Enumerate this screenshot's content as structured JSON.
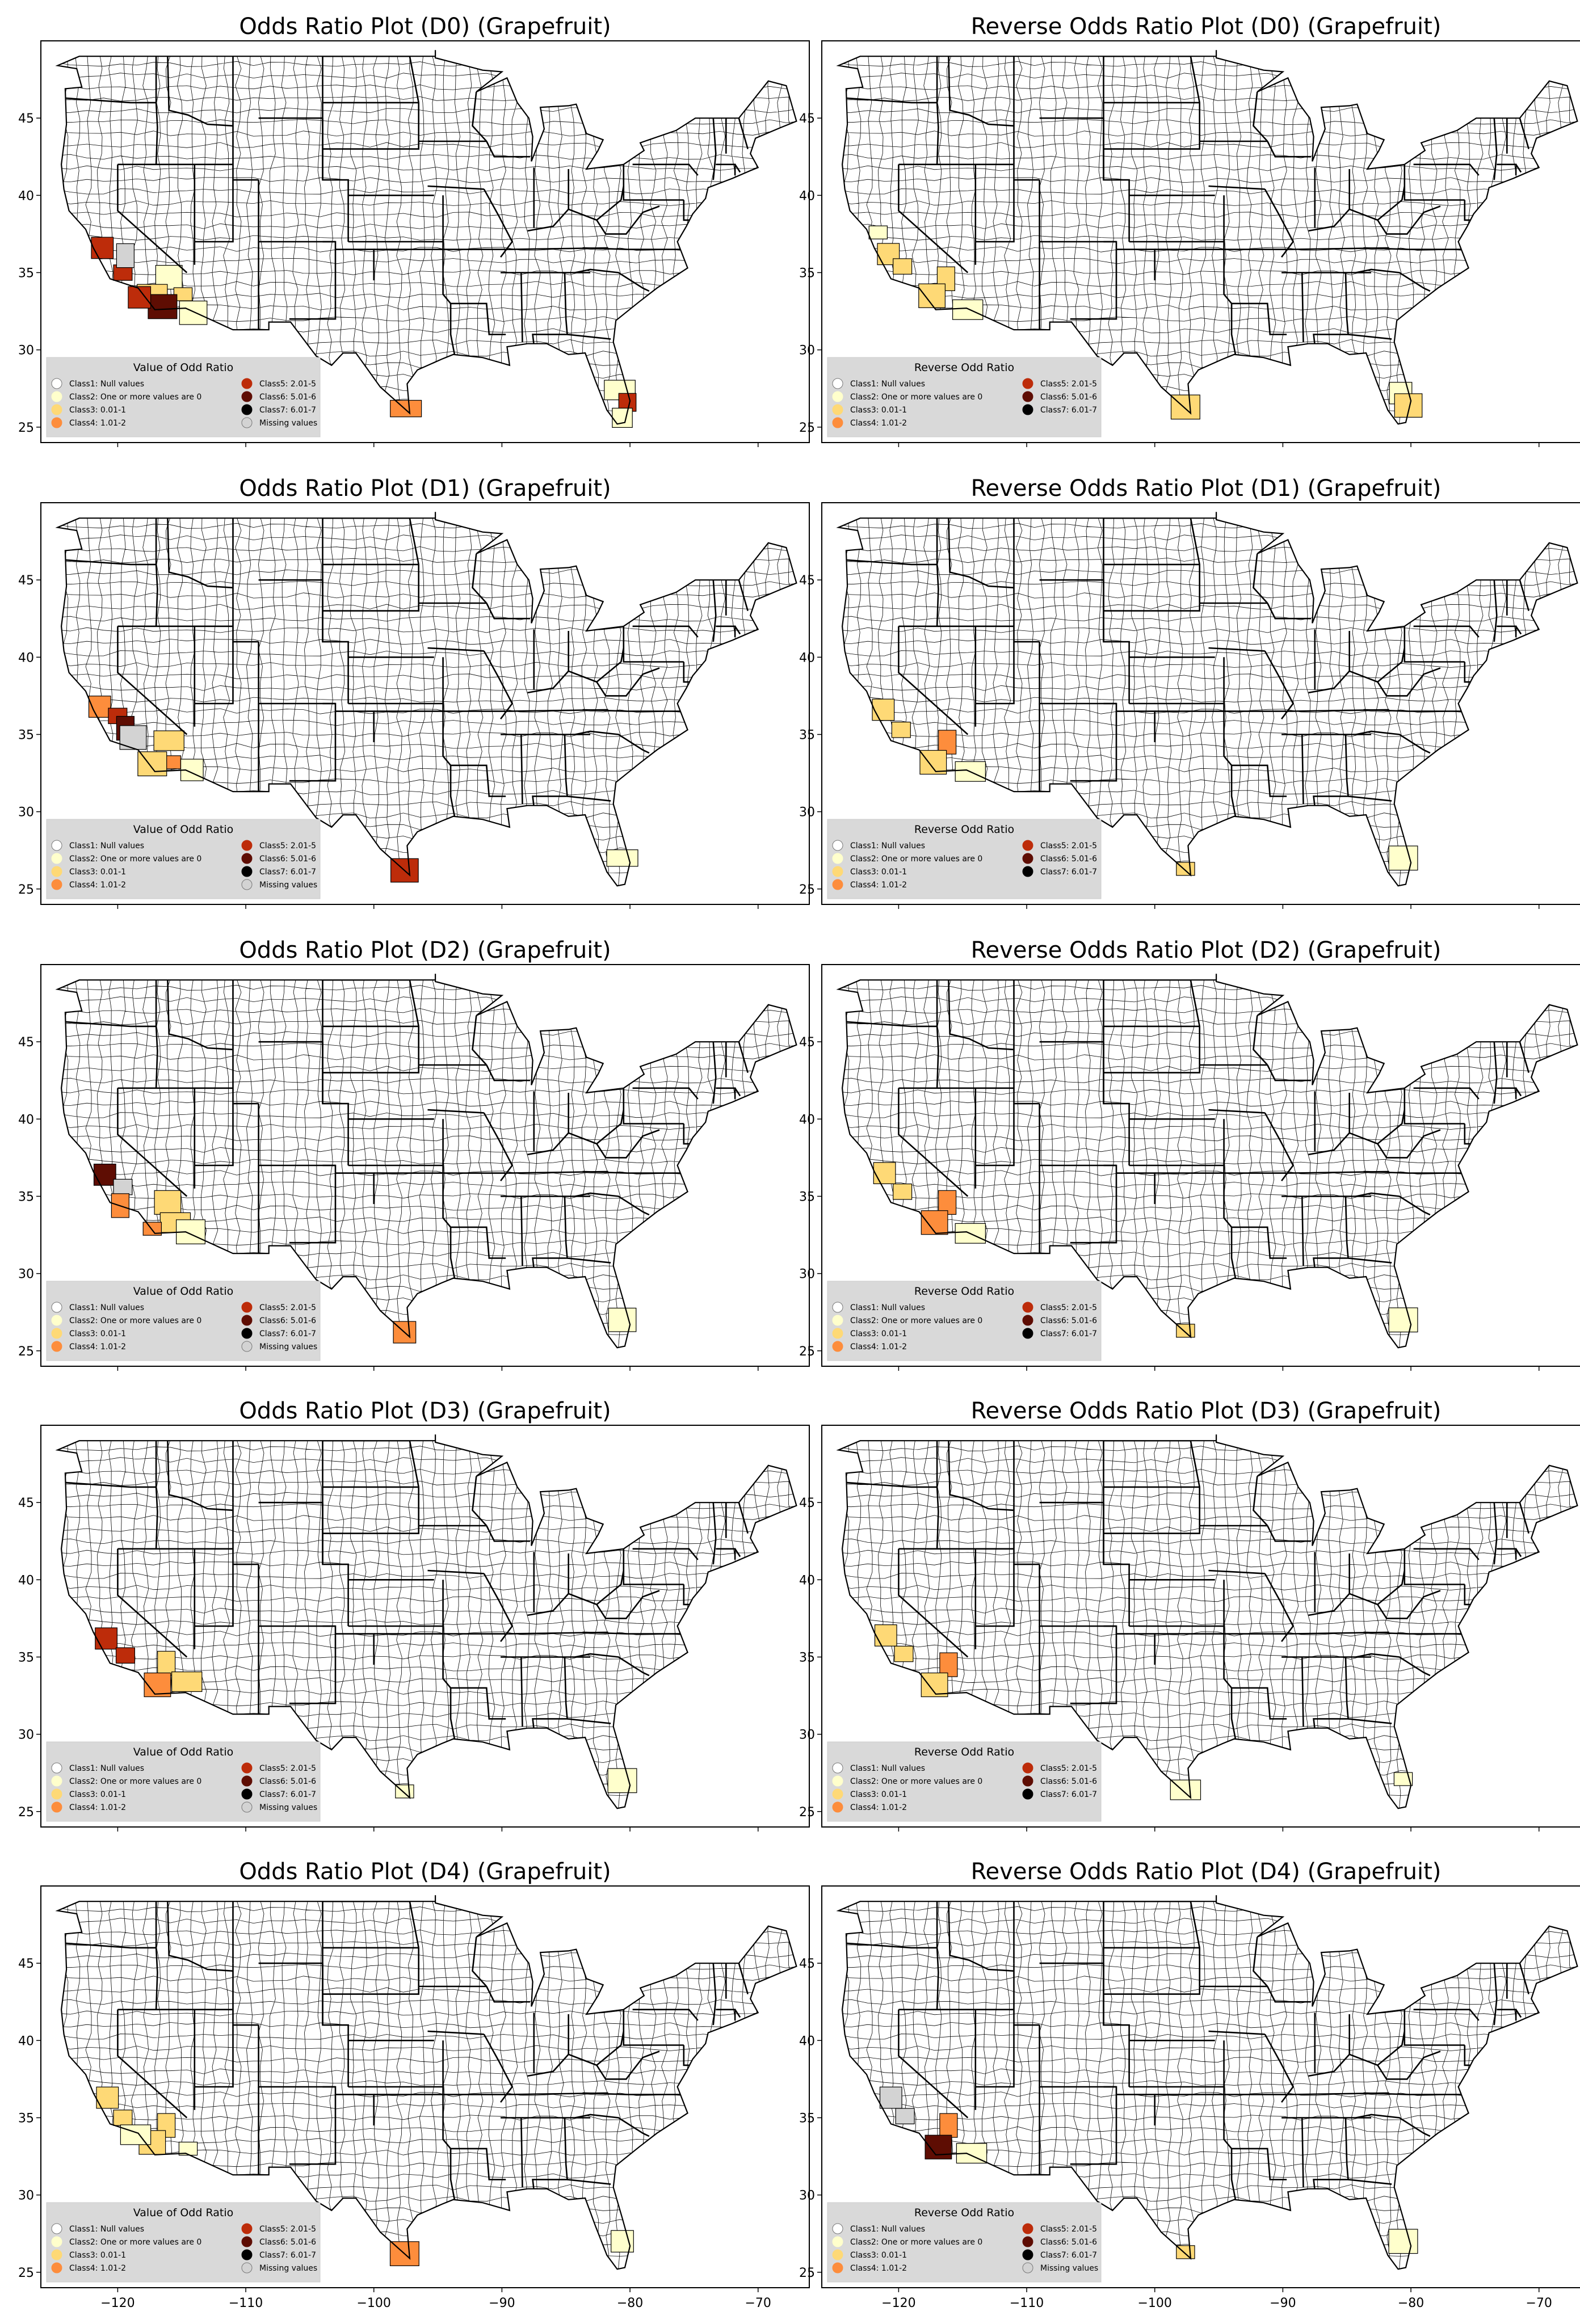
{
  "map_data": {
    "type": "choropleth",
    "region": "Contiguous United States (counties)",
    "lon_ticks": [
      -120,
      -110,
      -100,
      -90,
      -80,
      -70
    ],
    "lat_ticks": [
      25,
      30,
      35,
      40,
      45
    ],
    "lon_range": [
      -126,
      -66
    ],
    "lat_range": [
      24,
      50
    ],
    "class_colors": {
      "Class1": "#ffffff",
      "Class2": "#ffffcc",
      "Class3": "#fed976",
      "Class4": "#fd8d3c",
      "Class5": "#bd2c0a",
      "Class6": "#5e0d03",
      "Class7": "#000000",
      "Missing": "#d3d3d3"
    },
    "panels": [
      {
        "title": "Odds Ratio Plot (D0) (Grapefruit)",
        "legend": "odds",
        "regions": [
          {
            "cls": "Class5",
            "lon": -121.2,
            "lat": 36.6
          },
          {
            "cls": "Class5",
            "lon": -119.6,
            "lat": 35.0
          },
          {
            "cls": "Missing",
            "lon": -119.4,
            "lat": 36.1
          },
          {
            "cls": "Class2",
            "lon": -116.0,
            "lat": 34.7
          },
          {
            "cls": "Class3",
            "lon": -117.3,
            "lat": 33.6
          },
          {
            "cls": "Class3",
            "lon": -114.9,
            "lat": 33.6
          },
          {
            "cls": "Class6",
            "lon": -116.5,
            "lat": 32.8
          },
          {
            "cls": "Class5",
            "lon": -118.3,
            "lat": 33.4
          },
          {
            "cls": "Class2",
            "lon": -114.1,
            "lat": 32.4
          },
          {
            "cls": "Class4",
            "lon": -97.5,
            "lat": 26.2
          },
          {
            "cls": "Class2",
            "lon": -80.8,
            "lat": 27.4
          },
          {
            "cls": "Class5",
            "lon": -80.2,
            "lat": 26.6
          },
          {
            "cls": "Class2",
            "lon": -80.6,
            "lat": 25.6
          }
        ]
      },
      {
        "title": "Reverse Odds Ratio Plot (D0) (Grapefruit)",
        "legend": "reverse",
        "regions": [
          {
            "cls": "Class3",
            "lon": -120.8,
            "lat": 36.2
          },
          {
            "cls": "Class3",
            "lon": -119.7,
            "lat": 35.4
          },
          {
            "cls": "Class3",
            "lon": -116.3,
            "lat": 34.6
          },
          {
            "cls": "Class3",
            "lon": -117.4,
            "lat": 33.5
          },
          {
            "cls": "Class2",
            "lon": -114.6,
            "lat": 32.6
          },
          {
            "cls": "Class2",
            "lon": -121.6,
            "lat": 37.6
          },
          {
            "cls": "Class3",
            "lon": -97.6,
            "lat": 26.3
          },
          {
            "cls": "Class2",
            "lon": -80.8,
            "lat": 27.2
          },
          {
            "cls": "Class3",
            "lon": -80.2,
            "lat": 26.4
          }
        ]
      },
      {
        "title": "Odds Ratio Plot (D1) (Grapefruit)",
        "legend": "odds",
        "regions": [
          {
            "cls": "Class4",
            "lon": -121.4,
            "lat": 36.8
          },
          {
            "cls": "Class5",
            "lon": -120.0,
            "lat": 36.2
          },
          {
            "cls": "Class6",
            "lon": -119.4,
            "lat": 35.4
          },
          {
            "cls": "Missing",
            "lon": -118.8,
            "lat": 34.8
          },
          {
            "cls": "Class3",
            "lon": -116.0,
            "lat": 34.6
          },
          {
            "cls": "Class4",
            "lon": -115.8,
            "lat": 33.2
          },
          {
            "cls": "Class3",
            "lon": -117.3,
            "lat": 33.1
          },
          {
            "cls": "Class2",
            "lon": -114.2,
            "lat": 32.7
          },
          {
            "cls": "Class5",
            "lon": -97.6,
            "lat": 26.2
          },
          {
            "cls": "Class2",
            "lon": -80.6,
            "lat": 27.0
          }
        ]
      },
      {
        "title": "Reverse Odds Ratio Plot (D1) (Grapefruit)",
        "legend": "reverse",
        "regions": [
          {
            "cls": "Class3",
            "lon": -121.2,
            "lat": 36.6
          },
          {
            "cls": "Class3",
            "lon": -119.8,
            "lat": 35.3
          },
          {
            "cls": "Class4",
            "lon": -116.2,
            "lat": 34.5
          },
          {
            "cls": "Class3",
            "lon": -117.3,
            "lat": 33.2
          },
          {
            "cls": "Class2",
            "lon": -114.4,
            "lat": 32.6
          },
          {
            "cls": "Class3",
            "lon": -97.6,
            "lat": 26.3
          },
          {
            "cls": "Class2",
            "lon": -80.6,
            "lat": 27.0
          }
        ]
      },
      {
        "title": "Odds Ratio Plot (D2) (Grapefruit)",
        "legend": "odds",
        "regions": [
          {
            "cls": "Class6",
            "lon": -121.0,
            "lat": 36.4
          },
          {
            "cls": "Missing",
            "lon": -119.6,
            "lat": 35.6
          },
          {
            "cls": "Class4",
            "lon": -119.8,
            "lat": 34.4
          },
          {
            "cls": "Class3",
            "lon": -116.1,
            "lat": 34.6
          },
          {
            "cls": "Class3",
            "lon": -115.5,
            "lat": 33.3
          },
          {
            "cls": "Class4",
            "lon": -117.3,
            "lat": 32.9
          },
          {
            "cls": "Class2",
            "lon": -114.3,
            "lat": 32.7
          },
          {
            "cls": "Class4",
            "lon": -97.6,
            "lat": 26.2
          },
          {
            "cls": "Class2",
            "lon": -80.6,
            "lat": 27.0
          }
        ]
      },
      {
        "title": "Reverse Odds Ratio Plot (D2) (Grapefruit)",
        "legend": "reverse",
        "regions": [
          {
            "cls": "Class3",
            "lon": -121.1,
            "lat": 36.5
          },
          {
            "cls": "Class3",
            "lon": -119.7,
            "lat": 35.3
          },
          {
            "cls": "Class4",
            "lon": -116.2,
            "lat": 34.6
          },
          {
            "cls": "Class4",
            "lon": -117.2,
            "lat": 33.3
          },
          {
            "cls": "Class2",
            "lon": -114.4,
            "lat": 32.6
          },
          {
            "cls": "Class3",
            "lon": -97.6,
            "lat": 26.3
          },
          {
            "cls": "Class2",
            "lon": -80.6,
            "lat": 27.0
          }
        ]
      },
      {
        "title": "Odds Ratio Plot (D3) (Grapefruit)",
        "legend": "odds",
        "regions": [
          {
            "cls": "Class5",
            "lon": -120.9,
            "lat": 36.2
          },
          {
            "cls": "Class5",
            "lon": -119.4,
            "lat": 35.1
          },
          {
            "cls": "Class3",
            "lon": -116.2,
            "lat": 34.6
          },
          {
            "cls": "Class4",
            "lon": -116.9,
            "lat": 33.2
          },
          {
            "cls": "Class3",
            "lon": -114.6,
            "lat": 33.4
          },
          {
            "cls": "Class2",
            "lon": -97.6,
            "lat": 26.3
          },
          {
            "cls": "Class2",
            "lon": -80.6,
            "lat": 27.0
          }
        ]
      },
      {
        "title": "Reverse Odds Ratio Plot (D3) (Grapefruit)",
        "legend": "reverse",
        "regions": [
          {
            "cls": "Class3",
            "lon": -121.0,
            "lat": 36.4
          },
          {
            "cls": "Class3",
            "lon": -119.6,
            "lat": 35.2
          },
          {
            "cls": "Class4",
            "lon": -116.1,
            "lat": 34.5
          },
          {
            "cls": "Class3",
            "lon": -117.2,
            "lat": 33.2
          },
          {
            "cls": "Class2",
            "lon": -97.6,
            "lat": 26.4
          },
          {
            "cls": "Class2",
            "lon": -80.6,
            "lat": 27.1
          }
        ]
      },
      {
        "title": "Odds Ratio Plot (D4) (Grapefruit)",
        "legend": "odds",
        "regions": [
          {
            "cls": "Class3",
            "lon": -120.8,
            "lat": 36.3
          },
          {
            "cls": "Class3",
            "lon": -119.6,
            "lat": 35.0
          },
          {
            "cls": "Class3",
            "lon": -116.2,
            "lat": 34.5
          },
          {
            "cls": "Class3",
            "lon": -117.3,
            "lat": 33.4
          },
          {
            "cls": "Class2",
            "lon": -118.6,
            "lat": 33.9
          },
          {
            "cls": "Class2",
            "lon": -114.5,
            "lat": 33.0
          },
          {
            "cls": "Class4",
            "lon": -97.6,
            "lat": 26.2
          },
          {
            "cls": "Class2",
            "lon": -80.6,
            "lat": 27.0
          }
        ]
      },
      {
        "title": "Reverse Odds Ratio Plot (D4) (Grapefruit)",
        "legend": "reverse",
        "regions": [
          {
            "cls": "Missing",
            "lon": -120.6,
            "lat": 36.3
          },
          {
            "cls": "Missing",
            "lon": -119.5,
            "lat": 35.1
          },
          {
            "cls": "Class4",
            "lon": -116.1,
            "lat": 34.5
          },
          {
            "cls": "Class6",
            "lon": -116.9,
            "lat": 33.1
          },
          {
            "cls": "Class2",
            "lon": -114.3,
            "lat": 32.7
          },
          {
            "cls": "Class3",
            "lon": -97.6,
            "lat": 26.3
          },
          {
            "cls": "Class2",
            "lon": -80.6,
            "lat": 27.0
          }
        ]
      }
    ]
  },
  "legend_odds": {
    "title": "Value of Odd Ratio",
    "items": [
      {
        "label": "Class1: Null values",
        "color": "#ffffff"
      },
      {
        "label": "Class2: One or more values are 0",
        "color": "#ffffcc"
      },
      {
        "label": "Class3: 0.01-1",
        "color": "#fed976"
      },
      {
        "label": "Class4: 1.01-2",
        "color": "#fd8d3c"
      },
      {
        "label": "Class5: 2.01-5",
        "color": "#bd2c0a"
      },
      {
        "label": "Class6: 5.01-6",
        "color": "#5e0d03"
      },
      {
        "label": "Class7: 6.01-7",
        "color": "#000000"
      },
      {
        "label": "Missing values",
        "color": "#d3d3d3"
      }
    ]
  },
  "legend_reverse": {
    "title": "Reverse Odd Ratio",
    "items": [
      {
        "label": "Class1: Null values",
        "color": "#ffffff"
      },
      {
        "label": "Class2: One or more values are 0",
        "color": "#ffffcc"
      },
      {
        "label": "Class3: 0.01-1",
        "color": "#fed976"
      },
      {
        "label": "Class4: 1.01-2",
        "color": "#fd8d3c"
      },
      {
        "label": "Class5: 2.01-5",
        "color": "#bd2c0a"
      },
      {
        "label": "Class6: 5.01-6",
        "color": "#5e0d03"
      },
      {
        "label": "Class7: 6.01-7",
        "color": "#000000"
      },
      {
        "label": "Missing values",
        "color": "#d3d3d3"
      }
    ]
  }
}
